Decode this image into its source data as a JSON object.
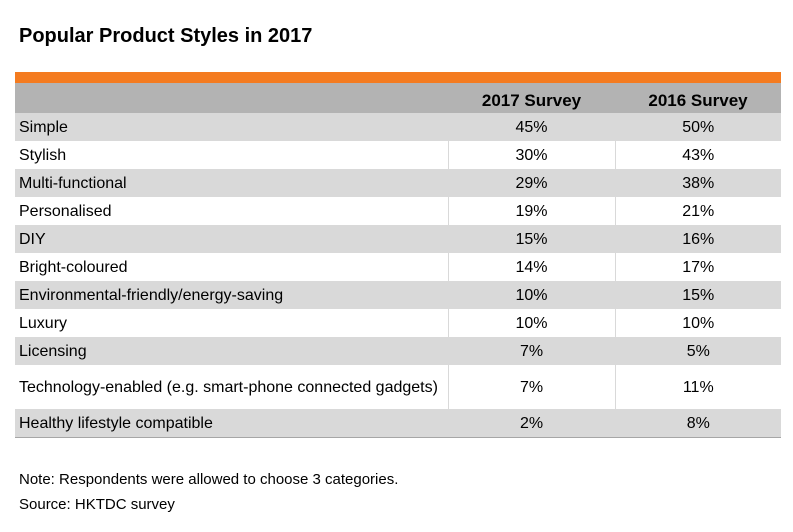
{
  "title": "Popular Product Styles in 2017",
  "colors": {
    "accent": "#f47b20",
    "header_bg": "#b3b3b3",
    "row_shade": "#d9d9d9"
  },
  "table": {
    "headers": [
      "",
      "2017 Survey",
      "2016 Survey"
    ],
    "rows": [
      {
        "label": "Simple",
        "y2017": "45%",
        "y2016": "50%"
      },
      {
        "label": "Stylish",
        "y2017": "30%",
        "y2016": "43%"
      },
      {
        "label": "Multi-functional",
        "y2017": "29%",
        "y2016": "38%"
      },
      {
        "label": "Personalised",
        "y2017": "19%",
        "y2016": "21%"
      },
      {
        "label": "DIY",
        "y2017": "15%",
        "y2016": "16%"
      },
      {
        "label": "Bright-coloured",
        "y2017": "14%",
        "y2016": "17%"
      },
      {
        "label": "Environmental-friendly/energy-saving",
        "y2017": "10%",
        "y2016": "15%"
      },
      {
        "label": "Luxury",
        "y2017": "10%",
        "y2016": "10%"
      },
      {
        "label": "Licensing",
        "y2017": "7%",
        "y2016": "5%"
      },
      {
        "label": "Technology-enabled (e.g. smart-phone connected gadgets)",
        "y2017": "7%",
        "y2016": "11%"
      },
      {
        "label": "Healthy lifestyle compatible",
        "y2017": "2%",
        "y2016": "8%"
      }
    ]
  },
  "notes": {
    "note": "Note: Respondents were allowed to choose 3 categories.",
    "source": "Source: HKTDC survey"
  }
}
